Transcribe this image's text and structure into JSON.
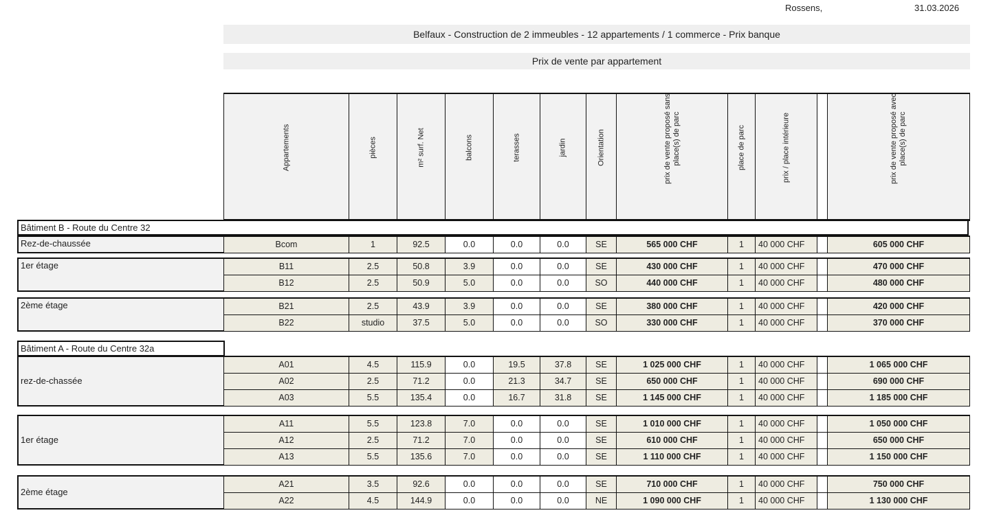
{
  "header": {
    "place": "Rossens,",
    "date": "31.03.2026"
  },
  "title": "Belfaux - Construction de 2 immeubles - 12 appartements / 1 commerce - Prix banque",
  "subtitle": "Prix de vente par appartement",
  "columns": [
    "Appartements",
    "pièces",
    "m² surf. Net",
    "balcons",
    "terasses",
    "jardin",
    "Orientation",
    "prix de vente proposé sans place(s) de parc",
    "place de parc",
    "prix / place intérieure",
    "",
    "prix de vente proposé avec place(s) de parc"
  ],
  "buildings": [
    {
      "title": "Bâtiment B  - Route du Centre 32",
      "floors": [
        {
          "label": "Rez-de-chaussée",
          "rows": [
            [
              "Bcom",
              "1",
              "92.5",
              "0.0",
              "0.0",
              "0.0",
              "SE",
              "565 000 CHF",
              "1",
              "40 000 CHF",
              "605 000 CHF"
            ]
          ]
        },
        {
          "label": "1er étage",
          "rows": [
            [
              "B11",
              "2.5",
              "50.8",
              "3.9",
              "0.0",
              "0.0",
              "SE",
              "430 000 CHF",
              "1",
              "40 000 CHF",
              "470 000 CHF"
            ],
            [
              "B12",
              "2.5",
              "50.9",
              "5.0",
              "0.0",
              "0.0",
              "SO",
              "440 000 CHF",
              "1",
              "40 000 CHF",
              "480 000 CHF"
            ]
          ]
        },
        {
          "label": "2ème étage",
          "rows": [
            [
              "B21",
              "2.5",
              "43.9",
              "3.9",
              "0.0",
              "0.0",
              "SE",
              "380 000 CHF",
              "1",
              "40 000 CHF",
              "420 000 CHF"
            ],
            [
              "B22",
              "studio",
              "37.5",
              "5.0",
              "0.0",
              "0.0",
              "SO",
              "330 000 CHF",
              "1",
              "40 000 CHF",
              "370 000 CHF"
            ]
          ]
        }
      ]
    },
    {
      "title": "Bâtiment A - Route du Centre 32a",
      "floors": [
        {
          "label": "rez-de-chassée",
          "rows": [
            [
              "A01",
              "4.5",
              "115.9",
              "0.0",
              "19.5",
              "37.8",
              "SE",
              "1 025 000 CHF",
              "1",
              "40 000 CHF",
              "1 065 000 CHF"
            ],
            [
              "A02",
              "2.5",
              "71.2",
              "0.0",
              "21.3",
              "34.7",
              "SE",
              "650 000 CHF",
              "1",
              "40 000 CHF",
              "690 000 CHF"
            ],
            [
              "A03",
              "5.5",
              "135.4",
              "0.0",
              "16.7",
              "31.8",
              "SE",
              "1 145 000 CHF",
              "1",
              "40 000 CHF",
              "1 185 000 CHF"
            ]
          ]
        },
        {
          "label": "1er étage",
          "rows": [
            [
              "A11",
              "5.5",
              "123.8",
              "7.0",
              "0.0",
              "0.0",
              "SE",
              "1 010 000 CHF",
              "1",
              "40 000 CHF",
              "1 050 000 CHF"
            ],
            [
              "A12",
              "2.5",
              "71.2",
              "7.0",
              "0.0",
              "0.0",
              "SE",
              "610 000 CHF",
              "1",
              "40 000 CHF",
              "650 000 CHF"
            ],
            [
              "A13",
              "5.5",
              "135.6",
              "7.0",
              "0.0",
              "0.0",
              "SE",
              "1 110 000 CHF",
              "1",
              "40 000 CHF",
              "1 150 000 CHF"
            ]
          ]
        },
        {
          "label": "2ème étage",
          "rows": [
            [
              "A21",
              "3.5",
              "92.6",
              "0.0",
              "0.0",
              "0.0",
              "SE",
              "710 000 CHF",
              "1",
              "40 000 CHF",
              "750 000 CHF"
            ],
            [
              "A22",
              "4.5",
              "144.9",
              "0.0",
              "0.0",
              "0.0",
              "NE",
              "1 090 000 CHF",
              "1",
              "40 000 CHF",
              "1 130 000 CHF"
            ]
          ]
        }
      ]
    }
  ]
}
